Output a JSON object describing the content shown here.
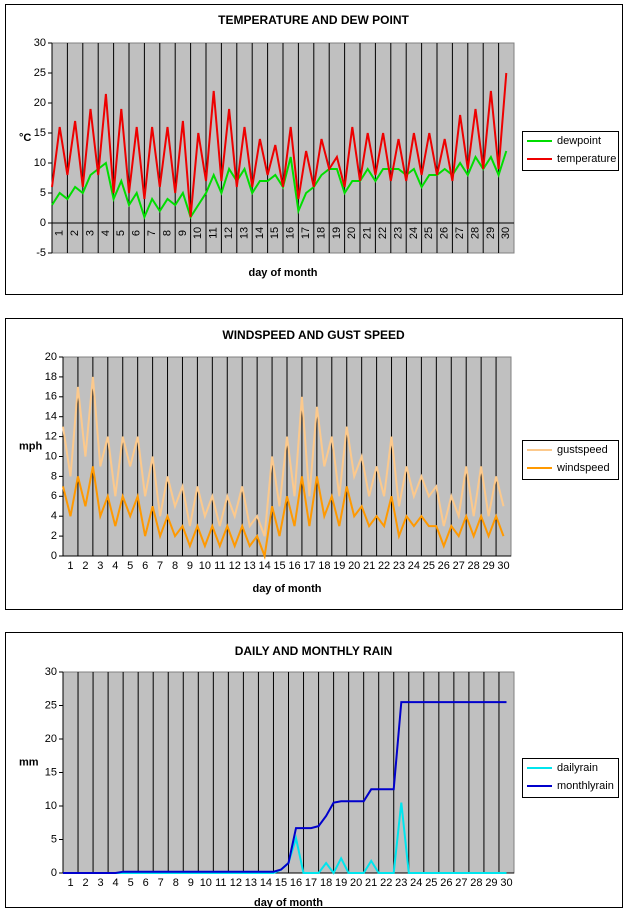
{
  "chart_data": [
    {
      "type": "line",
      "title": "TEMPERATURE AND DEW POINT",
      "x_label": "day of month",
      "y_label": "°C",
      "legend": "right",
      "grid": "x",
      "xlim": [
        1,
        31
      ],
      "xticks": [
        1,
        2,
        3,
        4,
        5,
        6,
        7,
        8,
        9,
        10,
        11,
        12,
        13,
        14,
        15,
        16,
        17,
        18,
        19,
        20,
        21,
        22,
        23,
        24,
        25,
        26,
        27,
        28,
        29,
        30
      ],
      "ylim": [
        -5,
        30
      ],
      "yticks": [
        -5,
        0,
        5,
        10,
        15,
        20,
        25,
        30
      ],
      "x": [
        1,
        1.5,
        2,
        2.5,
        3,
        3.5,
        4,
        4.5,
        5,
        5.5,
        6,
        6.5,
        7,
        7.5,
        8,
        8.5,
        9,
        9.5,
        10,
        10.5,
        11,
        11.5,
        12,
        12.5,
        13,
        13.5,
        14,
        14.5,
        15,
        15.5,
        16,
        16.5,
        17,
        17.5,
        18,
        18.5,
        19,
        19.5,
        20,
        20.5,
        21,
        21.5,
        22,
        22.5,
        23,
        23.5,
        24,
        24.5,
        25,
        25.5,
        26,
        26.5,
        27,
        27.5,
        28,
        28.5,
        29,
        29.5,
        30,
        30.5
      ],
      "series": [
        {
          "name": "dewpoint",
          "color": "#00dd00",
          "values": [
            3,
            5,
            4,
            6,
            5,
            8,
            9,
            10,
            4,
            7,
            3,
            5,
            1,
            4,
            2,
            4,
            3,
            5,
            1,
            3,
            5,
            8,
            5,
            9,
            7,
            9,
            5,
            7,
            7,
            8,
            6,
            11,
            2,
            5,
            6,
            8,
            9,
            9,
            5,
            7,
            7,
            9,
            7,
            9,
            9,
            9,
            8,
            9,
            6,
            8,
            8,
            9,
            8,
            10,
            8,
            11,
            9,
            11,
            8,
            12
          ]
        },
        {
          "name": "temperature",
          "color": "#ee0000",
          "values": [
            6,
            16,
            8,
            17,
            6,
            19,
            8,
            21.5,
            5,
            19,
            5,
            16,
            4,
            16,
            6,
            16,
            5,
            17,
            1,
            15,
            7,
            22,
            7,
            19,
            6,
            16,
            6,
            14,
            8,
            13,
            6,
            16,
            4,
            12,
            6,
            14,
            9,
            11,
            6,
            16,
            7,
            15,
            8,
            15,
            7,
            14,
            7,
            15,
            8,
            15,
            8,
            14,
            7,
            18,
            9,
            19,
            9,
            22,
            9,
            25
          ]
        }
      ]
    },
    {
      "type": "line",
      "title": "WINDSPEED AND GUST SPEED",
      "x_label": "day of month",
      "y_label": "mph",
      "legend": "right",
      "grid": "x",
      "xlim": [
        1,
        31
      ],
      "xticks": [
        1,
        2,
        3,
        4,
        5,
        6,
        7,
        8,
        9,
        10,
        11,
        12,
        13,
        14,
        15,
        16,
        17,
        18,
        19,
        20,
        21,
        22,
        23,
        24,
        25,
        26,
        27,
        28,
        29,
        30
      ],
      "ylim": [
        0,
        20
      ],
      "yticks": [
        0,
        2,
        4,
        6,
        8,
        10,
        12,
        14,
        16,
        18,
        20
      ],
      "x": [
        1,
        1.5,
        2,
        2.5,
        3,
        3.5,
        4,
        4.5,
        5,
        5.5,
        6,
        6.5,
        7,
        7.5,
        8,
        8.5,
        9,
        9.5,
        10,
        10.5,
        11,
        11.5,
        12,
        12.5,
        13,
        13.5,
        14,
        14.5,
        15,
        15.5,
        16,
        16.5,
        17,
        17.5,
        18,
        18.5,
        19,
        19.5,
        20,
        20.5,
        21,
        21.5,
        22,
        22.5,
        23,
        23.5,
        24,
        24.5,
        25,
        25.5,
        26,
        26.5,
        27,
        27.5,
        28,
        28.5,
        29,
        29.5,
        30,
        30.5
      ],
      "series": [
        {
          "name": "gustspeed",
          "color": "#fcc98c",
          "values": [
            13,
            8,
            17,
            10,
            18,
            9,
            12,
            6,
            12,
            9,
            12,
            6,
            10,
            4,
            8,
            5,
            7,
            3,
            7,
            4,
            6,
            3,
            6,
            4,
            7,
            3,
            4,
            2,
            10,
            5,
            12,
            6,
            16,
            6,
            15,
            9,
            12,
            6,
            13,
            8,
            10,
            6,
            9,
            6,
            12,
            5,
            9,
            6,
            8,
            6,
            7,
            3,
            6,
            4,
            9,
            4,
            9,
            4,
            8,
            5
          ]
        },
        {
          "name": "windspeed",
          "color": "#ff9900",
          "values": [
            7,
            4,
            8,
            5,
            9,
            4,
            6,
            3,
            6,
            4,
            6,
            2,
            5,
            2,
            4,
            2,
            3,
            1,
            3,
            1,
            3,
            1,
            3,
            1,
            3,
            1,
            2,
            0,
            5,
            2,
            6,
            3,
            8,
            3,
            8,
            4,
            6,
            3,
            7,
            4,
            5,
            3,
            4,
            3,
            6,
            2,
            4,
            3,
            4,
            3,
            3,
            1,
            3,
            2,
            4,
            2,
            4,
            2,
            4,
            2
          ]
        }
      ]
    },
    {
      "type": "line",
      "title": "DAILY AND MONTHLY RAIN",
      "x_label": "day of month",
      "y_label": "mm",
      "legend": "right",
      "grid": "x",
      "xlim": [
        1,
        31
      ],
      "xticks": [
        1,
        2,
        3,
        4,
        5,
        6,
        7,
        8,
        9,
        10,
        11,
        12,
        13,
        14,
        15,
        16,
        17,
        18,
        19,
        20,
        21,
        22,
        23,
        24,
        25,
        26,
        27,
        28,
        29,
        30
      ],
      "ylim": [
        0,
        30
      ],
      "yticks": [
        0,
        5,
        10,
        15,
        20,
        25,
        30
      ],
      "x": [
        1,
        1.5,
        2,
        2.5,
        3,
        3.5,
        4,
        4.5,
        5,
        5.5,
        6,
        6.5,
        7,
        7.5,
        8,
        8.5,
        9,
        9.5,
        10,
        10.5,
        11,
        11.5,
        12,
        12.5,
        13,
        13.5,
        14,
        14.5,
        15,
        15.5,
        16,
        16.5,
        17,
        17.5,
        18,
        18.5,
        19,
        19.5,
        20,
        20.5,
        21,
        21.5,
        22,
        22.5,
        23,
        23.5,
        24,
        24.5,
        25,
        25.5,
        26,
        26.5,
        27,
        27.5,
        28,
        28.5,
        29,
        29.5,
        30,
        30.5
      ],
      "series": [
        {
          "name": "dailyrain",
          "color": "#00e5ee",
          "values": [
            0,
            0,
            0,
            0,
            0,
            0,
            0,
            0,
            0,
            0,
            0,
            0,
            0,
            0,
            0,
            0,
            0,
            0,
            0,
            0,
            0,
            0,
            0,
            0,
            0,
            0,
            0,
            0,
            0,
            0.5,
            1.5,
            5.2,
            0,
            0,
            0,
            1.5,
            0,
            2.2,
            0,
            0,
            0,
            1.8,
            0,
            0,
            0,
            10.5,
            0,
            0,
            0,
            0,
            0,
            0,
            0,
            0,
            0,
            0,
            0,
            0,
            0,
            0
          ]
        },
        {
          "name": "monthlyrain",
          "color": "#0000cc",
          "values": [
            0,
            0,
            0,
            0,
            0,
            0,
            0,
            0,
            0.2,
            0.2,
            0.2,
            0.2,
            0.2,
            0.2,
            0.2,
            0.2,
            0.2,
            0.2,
            0.2,
            0.2,
            0.2,
            0.2,
            0.2,
            0.2,
            0.2,
            0.2,
            0.2,
            0.2,
            0.2,
            0.5,
            1.5,
            6.7,
            6.7,
            6.7,
            7,
            8.5,
            10.5,
            10.7,
            10.7,
            10.7,
            10.7,
            12.5,
            12.5,
            12.5,
            12.5,
            25.5,
            25.5,
            25.5,
            25.5,
            25.5,
            25.5,
            25.5,
            25.5,
            25.5,
            25.5,
            25.5,
            25.5,
            25.5,
            25.5,
            25.5
          ]
        }
      ]
    }
  ]
}
